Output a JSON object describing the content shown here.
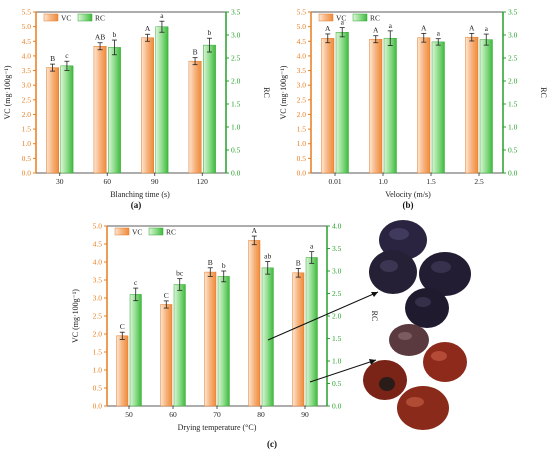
{
  "colors": {
    "vc_axis": "#e87d1e",
    "rc_axis": "#27a12a",
    "vc_bar_light": "#fde6d2",
    "vc_bar_dark": "#f08a3a",
    "rc_bar_light": "#dcf5d9",
    "rc_bar_dark": "#3cba3c"
  },
  "chart_data": [
    {
      "panel": "(a)",
      "type": "bar",
      "xlabel": "Blanching time (s)",
      "ylabel_left": "VC (mg·100g⁻¹)",
      "ylabel_right": "RC",
      "legend": [
        "VC",
        "RC"
      ],
      "legend_position": "top-left",
      "categories": [
        "30",
        "60",
        "90",
        "120"
      ],
      "ylim_left": [
        0,
        5.5
      ],
      "yticks_left": [
        "0.0",
        "0.5",
        "1.0",
        "1.5",
        "2.0",
        "2.5",
        "3.0",
        "3.5",
        "4.0",
        "4.5",
        "5.0",
        "5.5"
      ],
      "ylim_right": [
        0,
        3.5
      ],
      "yticks_right": [
        "0.0",
        "0.5",
        "1.0",
        "1.5",
        "2.0",
        "2.5",
        "3.0",
        "3.5"
      ],
      "series": [
        {
          "name": "VC",
          "axis": "left",
          "values": [
            3.6,
            4.33,
            4.62,
            3.82
          ],
          "errors": [
            0.12,
            0.12,
            0.12,
            0.12
          ],
          "letters": [
            "B",
            "AB",
            "A",
            "B"
          ]
        },
        {
          "name": "RC",
          "axis": "right",
          "values": [
            2.33,
            2.73,
            3.18,
            2.78
          ],
          "errors": [
            0.1,
            0.16,
            0.12,
            0.15
          ],
          "letters": [
            "c",
            "b",
            "a",
            "b"
          ]
        }
      ]
    },
    {
      "panel": "(b)",
      "type": "bar",
      "xlabel": "Velocity (m/s)",
      "ylabel_left": "VC (mg·100g⁻¹)",
      "ylabel_right": "RC",
      "legend": [
        "VC",
        "RC"
      ],
      "legend_position": "top-left",
      "categories": [
        "0.01",
        "1.0",
        "1.5",
        "2.5"
      ],
      "ylim_left": [
        0,
        5.5
      ],
      "yticks_left": [
        "0.0",
        "0.5",
        "1.0",
        "1.5",
        "2.0",
        "2.5",
        "3.0",
        "3.5",
        "4.0",
        "4.5",
        "5.0",
        "5.5"
      ],
      "ylim_right": [
        0,
        3.5
      ],
      "yticks_right": [
        "0.0",
        "0.5",
        "1.0",
        "1.5",
        "2.0",
        "2.5",
        "3.0",
        "3.5"
      ],
      "series": [
        {
          "name": "VC",
          "axis": "left",
          "values": [
            4.6,
            4.57,
            4.62,
            4.64
          ],
          "errors": [
            0.15,
            0.12,
            0.15,
            0.13
          ],
          "letters": [
            "A",
            "A",
            "A",
            "A"
          ]
        },
        {
          "name": "RC",
          "axis": "right",
          "values": [
            3.06,
            2.93,
            2.85,
            2.9
          ],
          "errors": [
            0.1,
            0.16,
            0.07,
            0.12
          ],
          "letters": [
            "a",
            "a",
            "a",
            "a"
          ]
        }
      ]
    },
    {
      "panel": "(c)",
      "type": "bar",
      "xlabel": "Drying temperature (°C)",
      "ylabel_left": "VC (mg·100g⁻¹)",
      "ylabel_right": "RC",
      "legend": [
        "VC",
        "RC"
      ],
      "legend_position": "top-left",
      "categories": [
        "50",
        "60",
        "70",
        "80",
        "90"
      ],
      "ylim_left": [
        0,
        5.0
      ],
      "yticks_left": [
        "0.0",
        "0.5",
        "1.0",
        "1.5",
        "2.0",
        "2.5",
        "3.0",
        "3.5",
        "4.0",
        "4.5",
        "5.0"
      ],
      "ylim_right": [
        0,
        4.0
      ],
      "yticks_right": [
        "0.0",
        "0.5",
        "1.0",
        "1.5",
        "2.0",
        "2.5",
        "3.0",
        "3.5",
        "4.0"
      ],
      "series": [
        {
          "name": "VC",
          "axis": "left",
          "values": [
            1.95,
            2.82,
            3.72,
            4.6,
            3.7
          ],
          "errors": [
            0.1,
            0.1,
            0.12,
            0.12,
            0.12
          ],
          "letters": [
            "C",
            "C",
            "B",
            "A",
            "B"
          ]
        },
        {
          "name": "RC",
          "axis": "right",
          "values": [
            2.48,
            2.7,
            2.88,
            3.07,
            3.3
          ],
          "errors": [
            0.14,
            0.13,
            0.12,
            0.14,
            0.13
          ],
          "letters": [
            "c",
            "bc",
            "b",
            "ab",
            "a"
          ]
        }
      ]
    }
  ]
}
